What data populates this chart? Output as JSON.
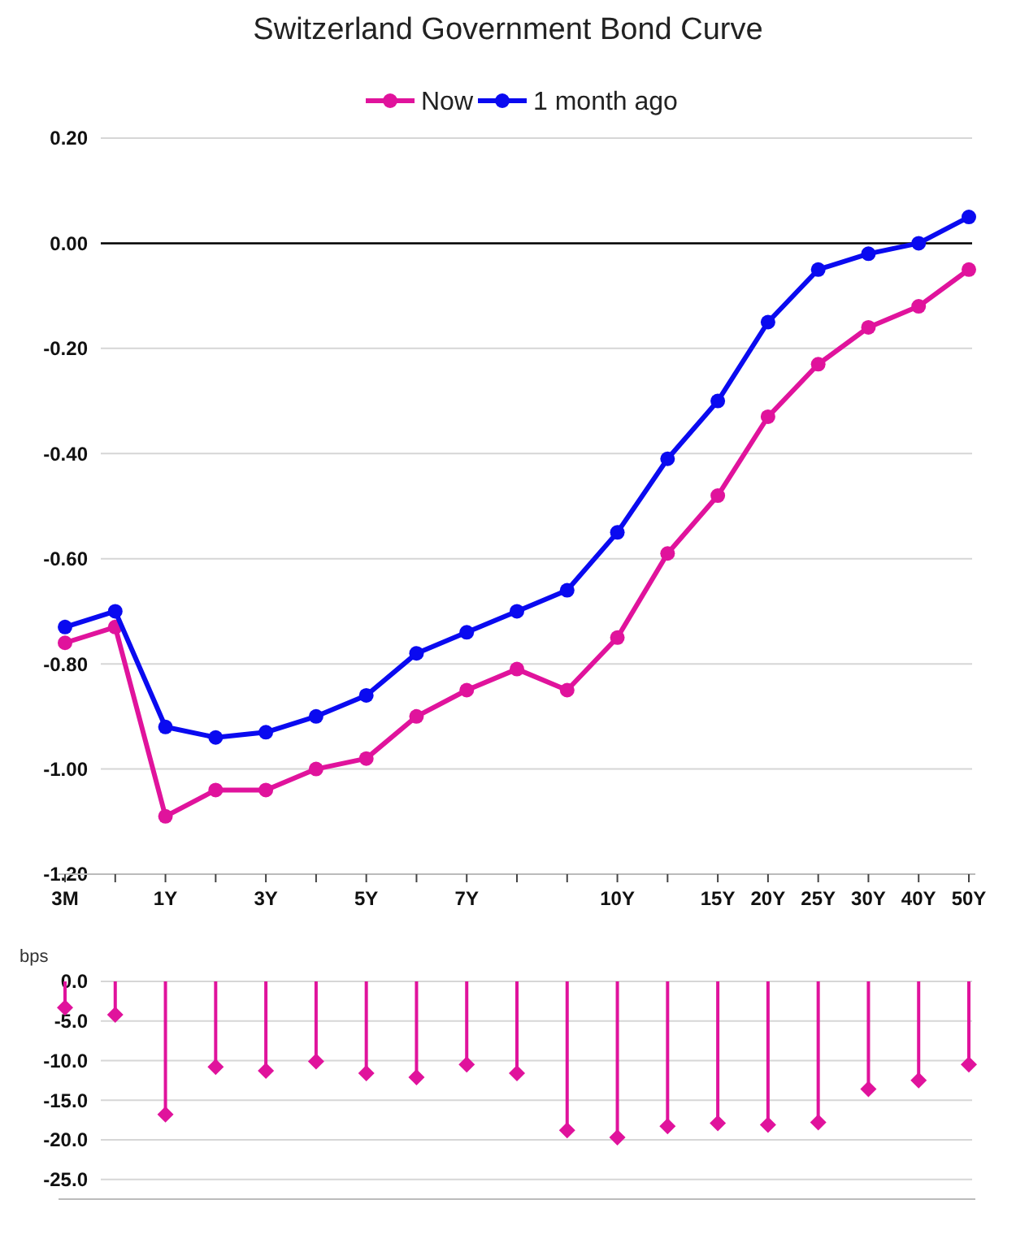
{
  "chart_data": [
    {
      "type": "line",
      "title": "Switzerland Government Bond Curve",
      "categories": [
        "3M",
        null,
        "1Y",
        null,
        "3Y",
        null,
        "5Y",
        null,
        "7Y",
        null,
        null,
        "10Y",
        null,
        "15Y",
        "20Y",
        "25Y",
        "30Y",
        "40Y",
        "50Y"
      ],
      "series": [
        {
          "name": "Now",
          "color": "#e0139c",
          "values": [
            -0.76,
            -0.73,
            -1.09,
            -1.04,
            -1.04,
            -1.0,
            -0.98,
            -0.9,
            -0.85,
            -0.81,
            -0.85,
            -0.75,
            -0.59,
            -0.48,
            -0.33,
            -0.23,
            -0.16,
            -0.12,
            -0.05
          ]
        },
        {
          "name": "1 month ago",
          "color": "#0a0af0",
          "values": [
            -0.73,
            -0.7,
            -0.92,
            -0.94,
            -0.93,
            -0.9,
            -0.86,
            -0.78,
            -0.74,
            -0.7,
            -0.66,
            -0.55,
            -0.41,
            -0.3,
            -0.15,
            -0.05,
            -0.02,
            0.0,
            0.05
          ]
        }
      ],
      "ylim": [
        -1.2,
        0.2
      ],
      "yticks": [
        {
          "value": -1.2,
          "label": "-1.20"
        },
        {
          "value": -1.0,
          "label": "-1.00"
        },
        {
          "value": -0.8,
          "label": "-0.80"
        },
        {
          "value": -0.6,
          "label": "-0.60"
        },
        {
          "value": -0.4,
          "label": "-0.40"
        },
        {
          "value": -0.2,
          "label": "-0.20"
        },
        {
          "value": 0,
          "label": "0.00"
        },
        {
          "value": 0.2,
          "label": "0.20"
        }
      ],
      "ref_lines": [
        {
          "axis": "y",
          "value": 0,
          "color": "#000000"
        }
      ],
      "grid": "y",
      "legend": "top",
      "marker": "circle",
      "line_style": "solid"
    },
    {
      "type": "lollipop",
      "ylabel": "bps",
      "categories": [
        null,
        null,
        null,
        null,
        null,
        null,
        null,
        null,
        null,
        null,
        null,
        null,
        null,
        null,
        null,
        null,
        null,
        null,
        null
      ],
      "series": [
        {
          "color": "#e0139c",
          "values": [
            -3.3,
            -4.2,
            -16.8,
            -10.8,
            -11.3,
            -10.1,
            -11.6,
            -12.1,
            -10.5,
            -11.6,
            -18.8,
            -19.7,
            -18.3,
            -17.9,
            -18.1,
            -17.8,
            -13.6,
            -12.5,
            -10.5
          ]
        }
      ],
      "ylim": [
        -27.5,
        0
      ],
      "yticks": [
        {
          "value": -25,
          "label": "-25.0"
        },
        {
          "value": -20,
          "label": "-20.0"
        },
        {
          "value": -15,
          "label": "-15.0"
        },
        {
          "value": -10,
          "label": "-10.0"
        },
        {
          "value": -5,
          "label": "-5.0"
        },
        {
          "value": 0,
          "label": "0.0"
        }
      ],
      "grid": "y",
      "marker": "diamond"
    }
  ]
}
